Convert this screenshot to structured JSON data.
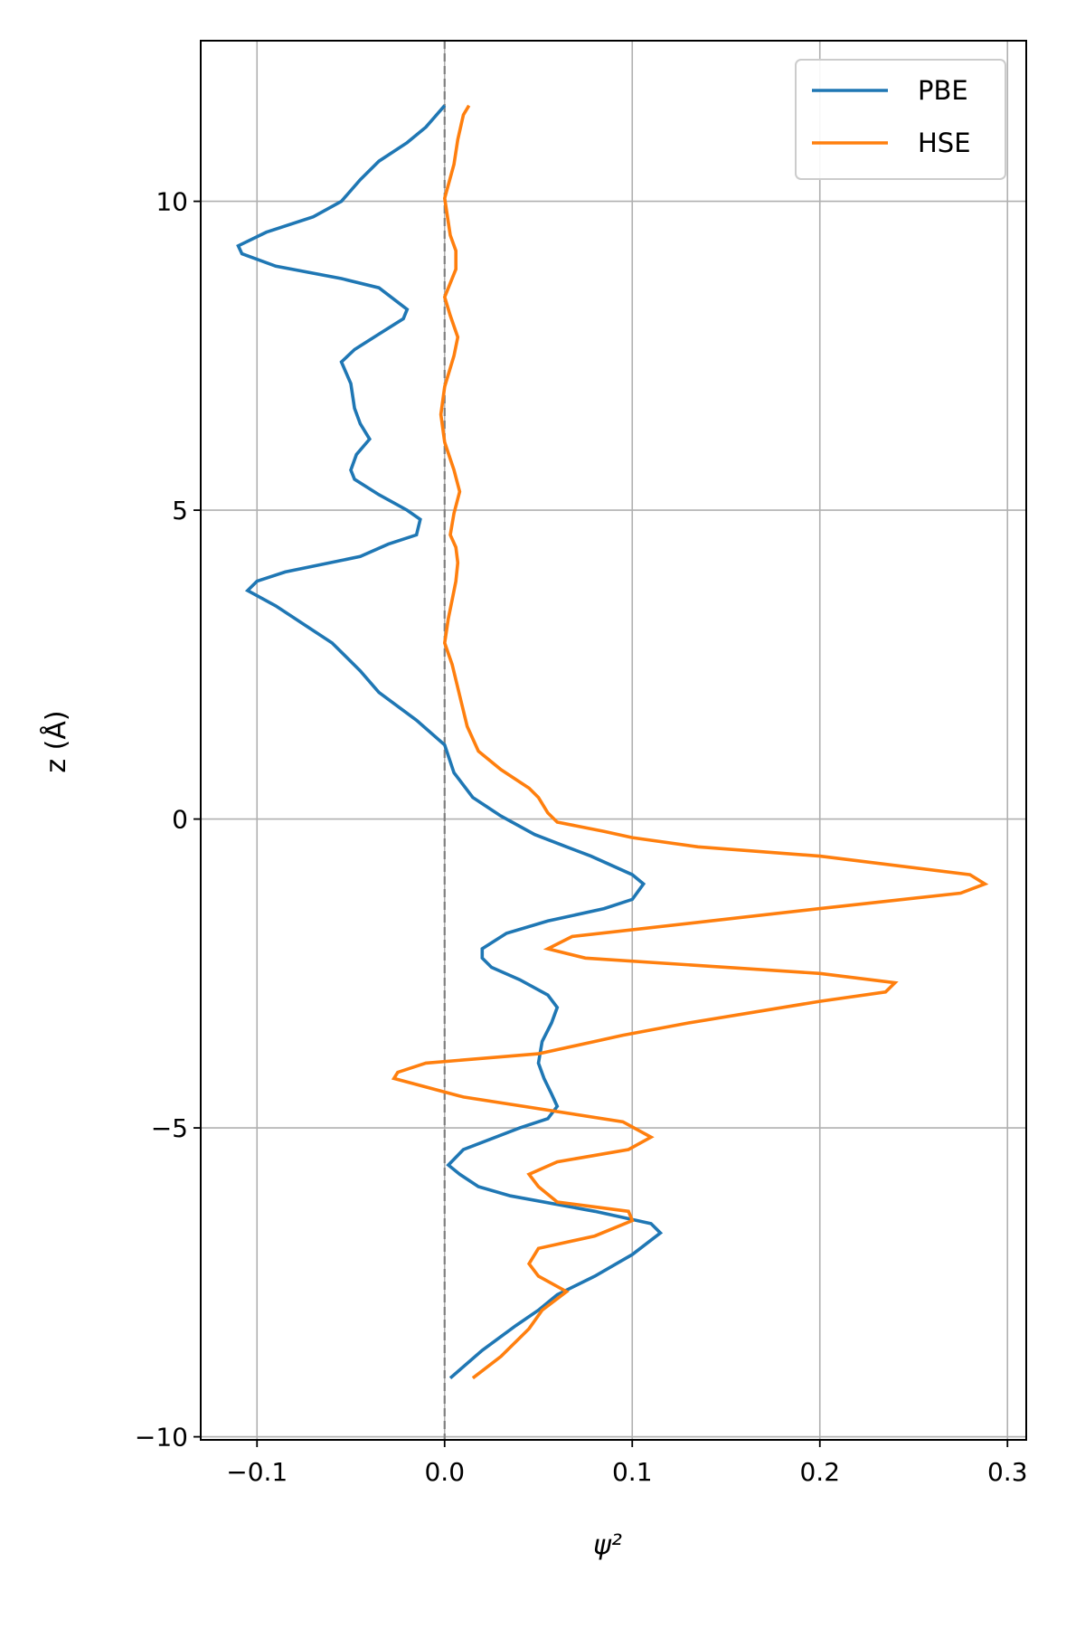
{
  "chart_data": {
    "type": "line",
    "title": "",
    "xlabel": "ψ²",
    "ylabel": "z (Å)",
    "xlim": [
      -0.13,
      0.31
    ],
    "ylim": [
      -10.05,
      12.6
    ],
    "x_ticks": [
      -0.1,
      0.0,
      0.1,
      0.2,
      0.3
    ],
    "x_tick_labels": [
      "−0.1",
      "0.0",
      "0.1",
      "0.2",
      "0.3"
    ],
    "y_ticks": [
      -10,
      -5,
      0,
      5,
      10
    ],
    "y_tick_labels": [
      "−10",
      "−5",
      "0",
      "5",
      "10"
    ],
    "grid": true,
    "legend_position": "top-right",
    "reference_line": {
      "x": 0.0,
      "style": "dashed",
      "color": "#808080"
    },
    "series": [
      {
        "name": "PBE",
        "color": "#1f77b4",
        "points": [
          [
            0.003,
            -9.05
          ],
          [
            0.02,
            -8.6
          ],
          [
            0.038,
            -8.2
          ],
          [
            0.05,
            -7.95
          ],
          [
            0.06,
            -7.7
          ],
          [
            0.08,
            -7.4
          ],
          [
            0.1,
            -7.05
          ],
          [
            0.115,
            -6.7
          ],
          [
            0.11,
            -6.55
          ],
          [
            0.08,
            -6.35
          ],
          [
            0.035,
            -6.1
          ],
          [
            0.018,
            -5.95
          ],
          [
            0.008,
            -5.75
          ],
          [
            0.002,
            -5.6
          ],
          [
            0.01,
            -5.35
          ],
          [
            0.04,
            -5.0
          ],
          [
            0.055,
            -4.85
          ],
          [
            0.06,
            -4.65
          ],
          [
            0.057,
            -4.45
          ],
          [
            0.053,
            -4.2
          ],
          [
            0.05,
            -3.95
          ],
          [
            0.052,
            -3.6
          ],
          [
            0.057,
            -3.3
          ],
          [
            0.06,
            -3.05
          ],
          [
            0.055,
            -2.85
          ],
          [
            0.04,
            -2.6
          ],
          [
            0.025,
            -2.4
          ],
          [
            0.02,
            -2.25
          ],
          [
            0.02,
            -2.1
          ],
          [
            0.033,
            -1.85
          ],
          [
            0.055,
            -1.65
          ],
          [
            0.085,
            -1.45
          ],
          [
            0.1,
            -1.3
          ],
          [
            0.106,
            -1.05
          ],
          [
            0.1,
            -0.9
          ],
          [
            0.078,
            -0.6
          ],
          [
            0.065,
            -0.45
          ],
          [
            0.048,
            -0.25
          ],
          [
            0.03,
            0.05
          ],
          [
            0.015,
            0.35
          ],
          [
            0.005,
            0.75
          ],
          [
            0.0,
            1.2
          ],
          [
            -0.015,
            1.6
          ],
          [
            -0.035,
            2.05
          ],
          [
            -0.045,
            2.4
          ],
          [
            -0.06,
            2.85
          ],
          [
            -0.075,
            3.15
          ],
          [
            -0.09,
            3.45
          ],
          [
            -0.105,
            3.7
          ],
          [
            -0.1,
            3.85
          ],
          [
            -0.085,
            4.0
          ],
          [
            -0.045,
            4.25
          ],
          [
            -0.03,
            4.45
          ],
          [
            -0.015,
            4.6
          ],
          [
            -0.013,
            4.85
          ],
          [
            -0.02,
            5.0
          ],
          [
            -0.035,
            5.25
          ],
          [
            -0.048,
            5.5
          ],
          [
            -0.05,
            5.65
          ],
          [
            -0.047,
            5.9
          ],
          [
            -0.04,
            6.15
          ],
          [
            -0.045,
            6.4
          ],
          [
            -0.048,
            6.65
          ],
          [
            -0.05,
            7.05
          ],
          [
            -0.055,
            7.4
          ],
          [
            -0.048,
            7.6
          ],
          [
            -0.035,
            7.85
          ],
          [
            -0.022,
            8.1
          ],
          [
            -0.02,
            8.25
          ],
          [
            -0.035,
            8.6
          ],
          [
            -0.055,
            8.75
          ],
          [
            -0.09,
            8.95
          ],
          [
            -0.108,
            9.15
          ],
          [
            -0.11,
            9.28
          ],
          [
            -0.095,
            9.5
          ],
          [
            -0.07,
            9.75
          ],
          [
            -0.055,
            10.0
          ],
          [
            -0.045,
            10.35
          ],
          [
            -0.035,
            10.65
          ],
          [
            -0.02,
            10.95
          ],
          [
            -0.01,
            11.2
          ],
          [
            0.0,
            11.55
          ]
        ]
      },
      {
        "name": "HSE",
        "color": "#ff7f0e",
        "points": [
          [
            0.015,
            -9.05
          ],
          [
            0.03,
            -8.7
          ],
          [
            0.045,
            -8.25
          ],
          [
            0.052,
            -7.95
          ],
          [
            0.065,
            -7.65
          ],
          [
            0.05,
            -7.4
          ],
          [
            0.045,
            -7.2
          ],
          [
            0.05,
            -6.95
          ],
          [
            0.08,
            -6.75
          ],
          [
            0.1,
            -6.5
          ],
          [
            0.098,
            -6.35
          ],
          [
            0.06,
            -6.2
          ],
          [
            0.05,
            -5.95
          ],
          [
            0.045,
            -5.75
          ],
          [
            0.06,
            -5.55
          ],
          [
            0.098,
            -5.35
          ],
          [
            0.11,
            -5.15
          ],
          [
            0.095,
            -4.9
          ],
          [
            0.01,
            -4.5
          ],
          [
            -0.027,
            -4.2
          ],
          [
            -0.025,
            -4.1
          ],
          [
            -0.01,
            -3.95
          ],
          [
            0.05,
            -3.8
          ],
          [
            0.08,
            -3.6
          ],
          [
            0.095,
            -3.5
          ],
          [
            0.13,
            -3.3
          ],
          [
            0.2,
            -2.95
          ],
          [
            0.235,
            -2.8
          ],
          [
            0.24,
            -2.65
          ],
          [
            0.2,
            -2.5
          ],
          [
            0.075,
            -2.25
          ],
          [
            0.055,
            -2.1
          ],
          [
            0.068,
            -1.9
          ],
          [
            0.2,
            -1.45
          ],
          [
            0.275,
            -1.2
          ],
          [
            0.288,
            -1.05
          ],
          [
            0.28,
            -0.9
          ],
          [
            0.2,
            -0.6
          ],
          [
            0.135,
            -0.45
          ],
          [
            0.1,
            -0.3
          ],
          [
            0.085,
            -0.2
          ],
          [
            0.06,
            -0.05
          ],
          [
            0.055,
            0.1
          ],
          [
            0.05,
            0.35
          ],
          [
            0.045,
            0.5
          ],
          [
            0.03,
            0.8
          ],
          [
            0.018,
            1.1
          ],
          [
            0.012,
            1.5
          ],
          [
            0.008,
            2.0
          ],
          [
            0.004,
            2.5
          ],
          [
            0.0,
            2.85
          ],
          [
            0.002,
            3.25
          ],
          [
            0.004,
            3.55
          ],
          [
            0.006,
            3.85
          ],
          [
            0.007,
            4.15
          ],
          [
            0.006,
            4.4
          ],
          [
            0.003,
            4.6
          ],
          [
            0.005,
            4.95
          ],
          [
            0.008,
            5.3
          ],
          [
            0.005,
            5.65
          ],
          [
            0.0,
            6.1
          ],
          [
            -0.002,
            6.55
          ],
          [
            0.0,
            7.0
          ],
          [
            0.005,
            7.5
          ],
          [
            0.007,
            7.8
          ],
          [
            0.003,
            8.15
          ],
          [
            0.0,
            8.45
          ],
          [
            0.006,
            8.9
          ],
          [
            0.006,
            9.2
          ],
          [
            0.003,
            9.45
          ],
          [
            0.0,
            10.05
          ],
          [
            0.005,
            10.6
          ],
          [
            0.007,
            11.0
          ],
          [
            0.01,
            11.4
          ],
          [
            0.013,
            11.55
          ]
        ]
      }
    ]
  }
}
